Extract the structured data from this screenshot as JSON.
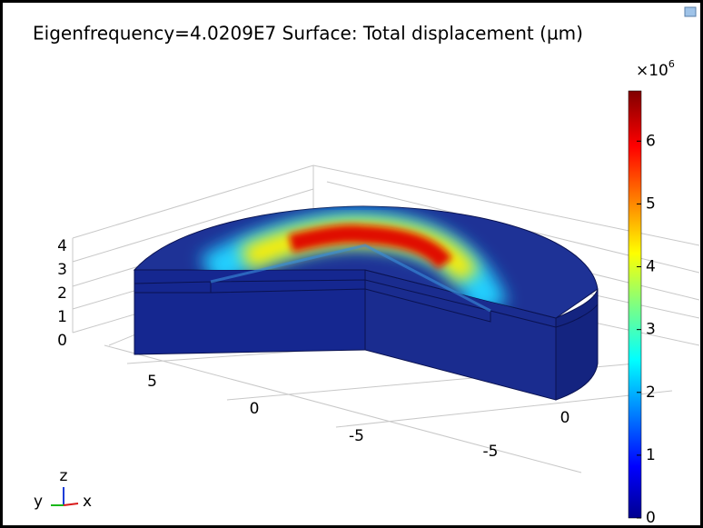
{
  "chart_data": {
    "type": "surface3d",
    "title": "Eigenfrequency=4.0209E7 Surface: Total displacement (µm)",
    "colorbar": {
      "lim": [
        0,
        6.8
      ],
      "ticks": [
        0,
        1,
        2,
        3,
        4,
        5,
        6
      ],
      "scale_label": "×10",
      "scale_exponent": "6"
    },
    "zticks": [
      0,
      1,
      2,
      3,
      4
    ],
    "xticks": [
      5,
      0,
      -5
    ],
    "yticks": [
      0,
      -5
    ],
    "triad": {
      "x": "x",
      "y": "y",
      "z": "z"
    }
  }
}
